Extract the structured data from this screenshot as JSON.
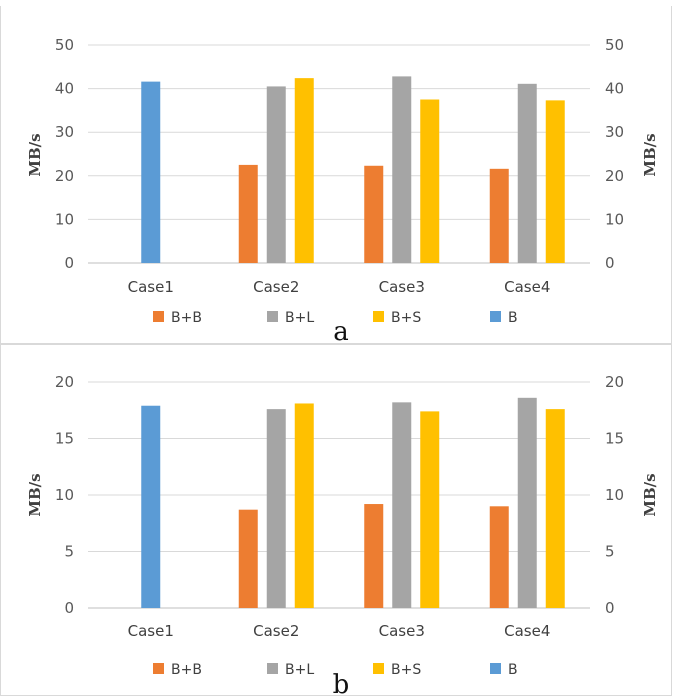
{
  "chart_data": [
    {
      "type": "bar",
      "caption": "a",
      "categories": [
        "Case1",
        "Case2",
        "Case3",
        "Case4"
      ],
      "ylabel": "MB/s",
      "ylabel_right": "MB/s",
      "ylim": [
        0,
        50
      ],
      "yticks": [
        0,
        10,
        20,
        30,
        40,
        50
      ],
      "grid": true,
      "legend": "bottom",
      "series": [
        {
          "name": "B+B",
          "color": "#ED7D31",
          "values": [
            null,
            22.5,
            22.3,
            21.6
          ]
        },
        {
          "name": "B+L",
          "color": "#A5A5A5",
          "values": [
            null,
            40.5,
            42.8,
            41.1
          ]
        },
        {
          "name": "B+S",
          "color": "#FFC000",
          "values": [
            null,
            42.4,
            37.5,
            37.3
          ]
        },
        {
          "name": "B",
          "color": "#5B9BD5",
          "values": [
            41.6,
            null,
            null,
            null
          ]
        }
      ]
    },
    {
      "type": "bar",
      "caption": "b",
      "categories": [
        "Case1",
        "Case2",
        "Case3",
        "Case4"
      ],
      "ylabel": "MB/s",
      "ylabel_right": "MB/s",
      "ylim": [
        0,
        20
      ],
      "yticks": [
        0,
        5,
        10,
        15,
        20
      ],
      "grid": true,
      "legend": "bottom",
      "series": [
        {
          "name": "B+B",
          "color": "#ED7D31",
          "values": [
            null,
            8.7,
            9.2,
            9.0
          ]
        },
        {
          "name": "B+L",
          "color": "#A5A5A5",
          "values": [
            null,
            17.6,
            18.2,
            18.6
          ]
        },
        {
          "name": "B+S",
          "color": "#FFC000",
          "values": [
            null,
            18.1,
            17.4,
            17.6
          ]
        },
        {
          "name": "B",
          "color": "#5B9BD5",
          "values": [
            17.9,
            null,
            null,
            null
          ]
        }
      ]
    }
  ]
}
